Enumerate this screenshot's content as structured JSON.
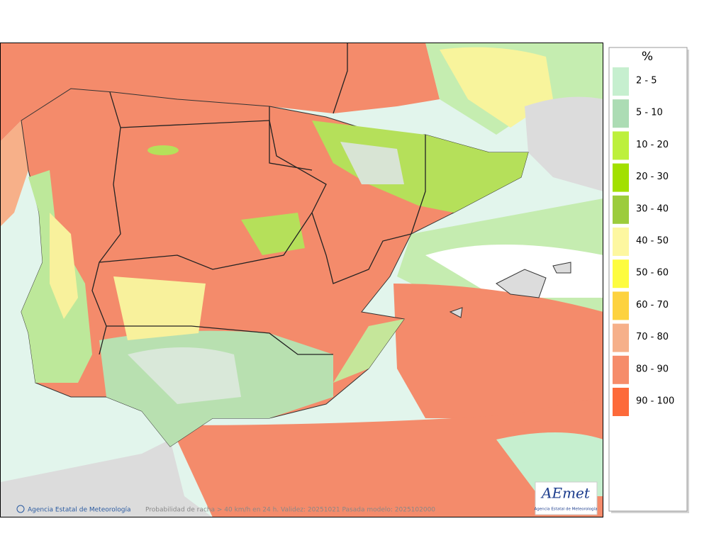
{
  "legend": {
    "title": "%",
    "items": [
      {
        "label": "2 - 5",
        "color": "#c6efcf"
      },
      {
        "label": "5 - 10",
        "color": "#acdcb4"
      },
      {
        "label": "10 - 20",
        "color": "#bdf03c"
      },
      {
        "label": "20 - 30",
        "color": "#a2e000"
      },
      {
        "label": "30 - 40",
        "color": "#9ccc3c"
      },
      {
        "label": "40 - 50",
        "color": "#fdf7a0"
      },
      {
        "label": "50 - 60",
        "color": "#fdfc3f"
      },
      {
        "label": "60 - 70",
        "color": "#fdd23f"
      },
      {
        "label": "70 - 80",
        "color": "#f6b08a"
      },
      {
        "label": "80 - 90",
        "color": "#f68c6a"
      },
      {
        "label": "90 - 100",
        "color": "#fd6a3a"
      }
    ]
  },
  "footer": {
    "credit": "Agencia Estatal de Meteorología",
    "caption": "Probabilidad de racha > 40 km/h en 24 h. Validez: 20251021 Pasada modelo: 2025102000"
  },
  "logo": {
    "name": "AEmet",
    "subtitle": "Agencia Estatal de Meteorología"
  }
}
